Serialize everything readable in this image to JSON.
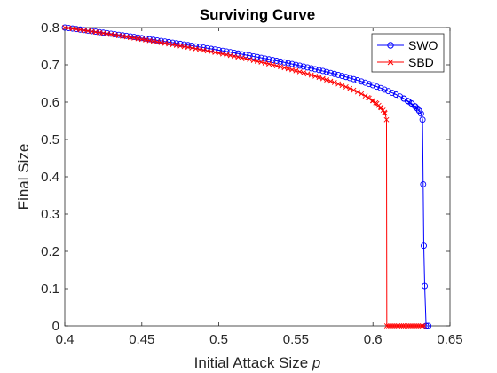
{
  "chart_data": {
    "type": "line",
    "title": "Surviving Curve",
    "xlabel": "Initial Attack Size",
    "xlabel_var": "p",
    "ylabel": "Final Size",
    "xlim": [
      0.4,
      0.65
    ],
    "ylim": [
      0,
      0.8
    ],
    "xticks": [
      "0.4",
      "0.45",
      "0.5",
      "0.55",
      "0.6",
      "0.65"
    ],
    "yticks": [
      "0",
      "0.1",
      "0.2",
      "0.3",
      "0.4",
      "0.5",
      "0.6",
      "0.7",
      "0.8"
    ],
    "grid": false,
    "legend_position": "top-right",
    "series": [
      {
        "name": "SWO",
        "color": "#0000ff",
        "marker": "circle",
        "curve": {
          "x_start": 0.4,
          "y_start": 0.8,
          "x_critical": 0.6322,
          "y_critical": 0.553
        },
        "tail": [
          [
            0.6322,
            0.553
          ],
          [
            0.6326,
            0.38
          ],
          [
            0.633,
            0.215
          ],
          [
            0.6336,
            0.107
          ],
          [
            0.6345,
            0.0
          ],
          [
            0.636,
            0.0
          ]
        ]
      },
      {
        "name": "SBD",
        "color": "#ff0000",
        "marker": "x",
        "curve": {
          "x_start": 0.4,
          "y_start": 0.8,
          "x_critical": 0.6088,
          "y_critical": 0.553
        },
        "tail": [
          [
            0.6088,
            0.553
          ],
          [
            0.609,
            0.0
          ],
          [
            0.634,
            0.0
          ]
        ]
      }
    ]
  }
}
